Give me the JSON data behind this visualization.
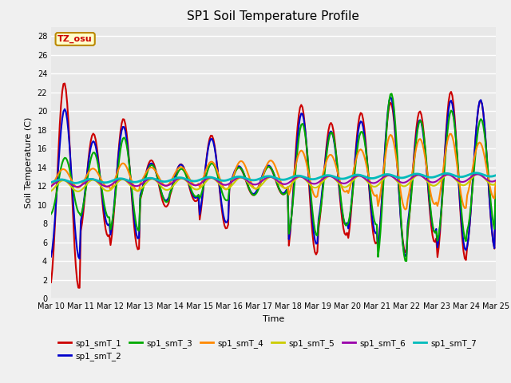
{
  "title": "SP1 Soil Temperature Profile",
  "xlabel": "Time",
  "ylabel": "Soil Temperature (C)",
  "tz_label": "TZ_osu",
  "ylim": [
    0,
    29
  ],
  "yticks": [
    0,
    2,
    4,
    6,
    8,
    10,
    12,
    14,
    16,
    18,
    20,
    22,
    24,
    26,
    28
  ],
  "bg_color": "#e8e8e8",
  "fig_bg_color": "#f0f0f0",
  "series_colors": {
    "spl_smT_1": "#cc0000",
    "spl_smT_2": "#0000cc",
    "spl_smT_3": "#00aa00",
    "spl_smT_4": "#ff8800",
    "spl_smT_5": "#cccc00",
    "spl_smT_6": "#9900aa",
    "spl_smT_7": "#00bbbb"
  },
  "series_lw": {
    "spl_smT_1": 1.5,
    "spl_smT_2": 1.5,
    "spl_smT_3": 1.5,
    "spl_smT_4": 1.5,
    "spl_smT_5": 1.5,
    "spl_smT_6": 1.5,
    "spl_smT_7": 2.0
  },
  "legend_labels": [
    "sp1_smT_1",
    "sp1_smT_2",
    "sp1_smT_3",
    "sp1_smT_4",
    "sp1_smT_5",
    "sp1_smT_6",
    "sp1_smT_7"
  ],
  "xtick_labels": [
    "Mar 10",
    "Mar 11",
    "Mar 12",
    "Mar 13",
    "Mar 14",
    "Mar 15",
    "Mar 16",
    "Mar 17",
    "Mar 18",
    "Mar 19",
    "Mar 20",
    "Mar 21",
    "Mar 22",
    "Mar 23",
    "Mar 24",
    "Mar 25"
  ]
}
